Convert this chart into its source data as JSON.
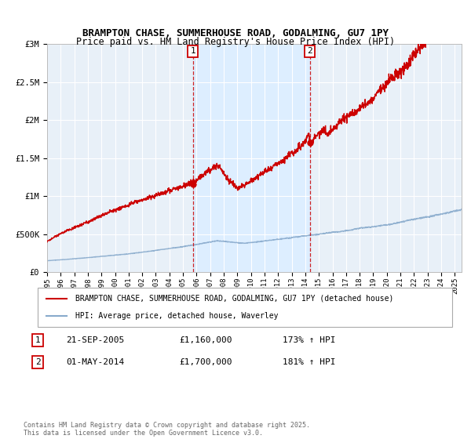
{
  "title": "BRAMPTON CHASE, SUMMERHOUSE ROAD, GODALMING, GU7 1PY",
  "subtitle": "Price paid vs. HM Land Registry's House Price Index (HPI)",
  "legend_line1": "BRAMPTON CHASE, SUMMERHOUSE ROAD, GODALMING, GU7 1PY (detached house)",
  "legend_line2": "HPI: Average price, detached house, Waverley",
  "annotation1_label": "1",
  "annotation1_date": "21-SEP-2005",
  "annotation1_price": "£1,160,000",
  "annotation1_hpi": "173% ↑ HPI",
  "annotation2_label": "2",
  "annotation2_date": "01-MAY-2014",
  "annotation2_price": "£1,700,000",
  "annotation2_hpi": "181% ↑ HPI",
  "vline1_x": 2005.72,
  "vline2_x": 2014.33,
  "point1_x": 2005.72,
  "point1_y": 1160000,
  "point2_x": 2014.33,
  "point2_y": 1700000,
  "copyright": "Contains HM Land Registry data © Crown copyright and database right 2025.\nThis data is licensed under the Open Government Licence v3.0.",
  "red_color": "#cc0000",
  "blue_color": "#88aacc",
  "shade_color": "#ddeeff",
  "background_color": "#e8f0f8",
  "grid_color": "#ffffff",
  "ylim": [
    0,
    3000000
  ],
  "xlim_start": 1995,
  "xlim_end": 2025.5
}
